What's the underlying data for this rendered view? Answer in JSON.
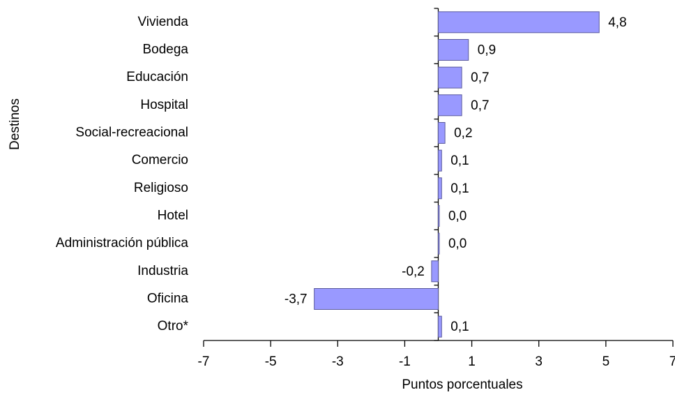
{
  "chart_data": {
    "type": "bar",
    "orientation": "horizontal",
    "xlabel": "Puntos porcentuales",
    "ylabel": "Destinos",
    "categories": [
      "Vivienda",
      "Bodega",
      "Educación",
      "Hospital",
      "Social-recreacional",
      "Comercio",
      "Religioso",
      "Hotel",
      "Administración pública",
      "Industria",
      "Oficina",
      "Otro*"
    ],
    "values": [
      4.8,
      0.9,
      0.7,
      0.7,
      0.2,
      0.1,
      0.1,
      0.03,
      0.03,
      -0.2,
      -3.7,
      0.1
    ],
    "value_labels": [
      "4,8",
      "0,9",
      "0,7",
      "0,7",
      "0,2",
      "0,1",
      "0,1",
      "0,0",
      "0,0",
      "-0,2",
      "-3,7",
      "0,1"
    ],
    "color": "#9999ff",
    "xlim": [
      -7,
      7
    ],
    "xticks": [
      -7,
      -5,
      -3,
      -1,
      1,
      3,
      5,
      7
    ],
    "grid": false
  }
}
